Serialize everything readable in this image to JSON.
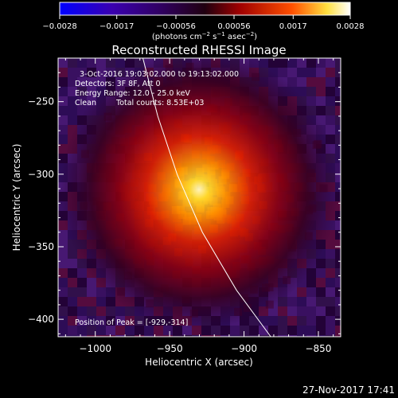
{
  "colorbar": {
    "ticks": [
      "−0.0028",
      "−0.0017",
      "−0.00056",
      "0.00056",
      "0.0017",
      "0.0028"
    ],
    "units_prefix": "(photons cm",
    "units_exp1": "−2",
    "units_mid": " s",
    "units_exp2": "−1",
    "units_suffix": " asec",
    "units_exp3": "−2",
    "units_close": ")",
    "range": [
      -0.0028,
      0.0028
    ]
  },
  "chart_data": {
    "type": "heatmap",
    "title": "Reconstructed RHESSI Image",
    "xlabel": "Heliocentric X (arcsec)",
    "ylabel": "Heliocentric Y (arcsec)",
    "xlim": [
      -1025,
      -835
    ],
    "ylim": [
      -412,
      -220
    ],
    "xticks": [
      -1000,
      -950,
      -900,
      -850
    ],
    "xtick_labels": [
      "−1000",
      "−950",
      "−900",
      "−850"
    ],
    "yticks": [
      -250,
      -300,
      -350,
      -400
    ],
    "ytick_labels": [
      "−250",
      "−300",
      "−350",
      "−400"
    ],
    "peak": {
      "x": -929,
      "y": -314
    },
    "limb_points": [
      [
        -968,
        -220
      ],
      [
        -958,
        -260
      ],
      [
        -945,
        -300
      ],
      [
        -928,
        -340
      ],
      [
        -905,
        -380
      ],
      [
        -882,
        -412
      ]
    ],
    "annotations": {
      "time_range": "3-Oct-2016 19:03:02.000 to 19:13:02.000",
      "detectors": "Detectors: 3F 8F, Att 0",
      "energy_range": "Energy Range: 12.0 - 25.0 keV",
      "method_label": "Clean",
      "total_counts": "Total counts: 8.53E+03",
      "peak_position": "Position of Peak = [-929,-314]"
    }
  },
  "footer": {
    "date": "27-Nov-2017 17:41"
  }
}
